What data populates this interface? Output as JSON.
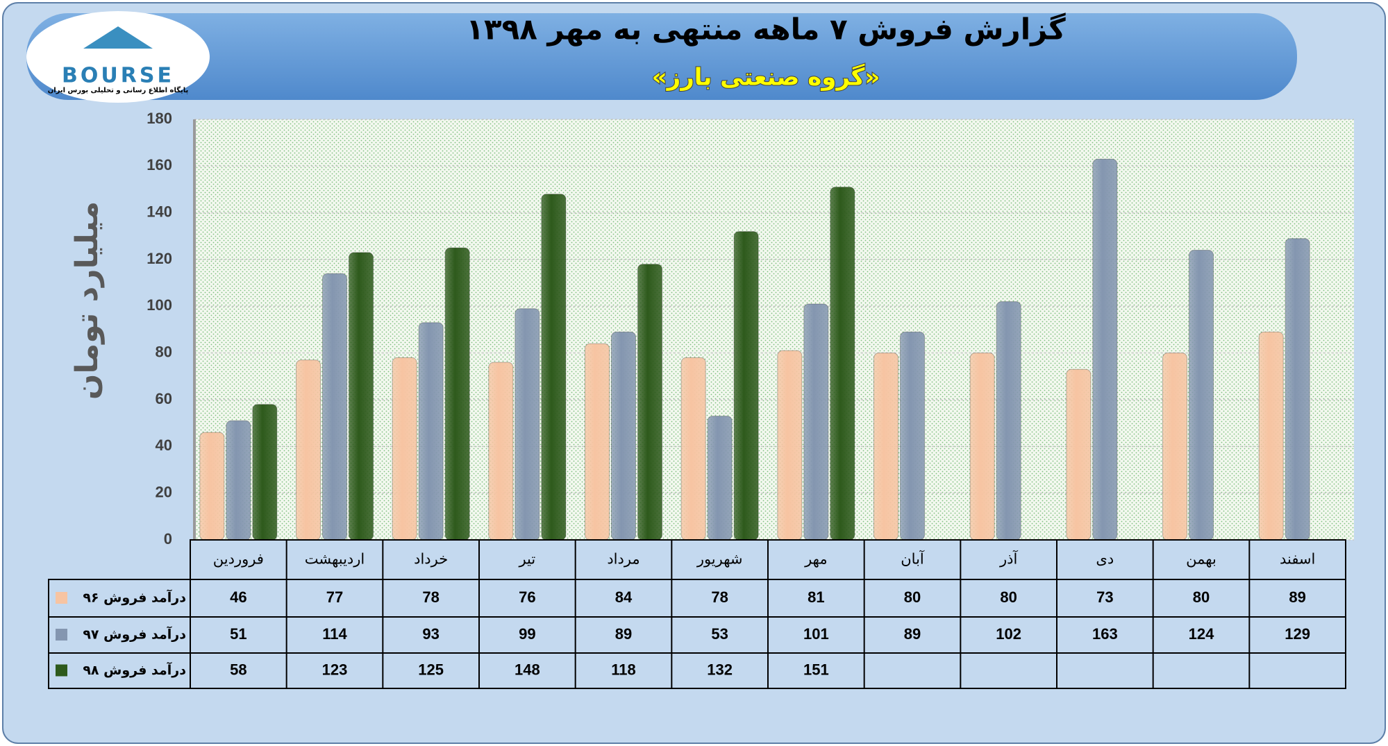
{
  "logo": {
    "text": "BOURSE",
    "tagline": "پایگاه اطلاع رسانی و تحلیلی بورس ایران"
  },
  "chart_data": {
    "type": "bar",
    "title": "گزارش فروش ۷ ماهه منتهی به مهر ۱۳۹۸",
    "subtitle": "«گروه صنعتی بارز»",
    "y_label": "میلیارد تومان",
    "categories": [
      "فروردین",
      "اردیبهشت",
      "خرداد",
      "تیر",
      "مرداد",
      "شهریور",
      "مهر",
      "آبان",
      "آذر",
      "دی",
      "بهمن",
      "اسفند"
    ],
    "series": [
      {
        "name": "درآمد فروش ۹۶",
        "color": "#f7c4a2",
        "values": [
          46,
          77,
          78,
          76,
          84,
          78,
          81,
          80,
          80,
          73,
          80,
          89
        ]
      },
      {
        "name": "درآمد فروش ۹۷",
        "color": "#8496b0",
        "values": [
          51,
          114,
          93,
          99,
          89,
          53,
          101,
          89,
          102,
          163,
          124,
          129
        ]
      },
      {
        "name": "درآمد فروش ۹۸",
        "color": "#2e5a1c",
        "values": [
          58,
          123,
          125,
          148,
          118,
          132,
          151,
          null,
          null,
          null,
          null,
          null
        ]
      }
    ],
    "ylim": [
      0,
      180
    ],
    "yticks": [
      0,
      20,
      40,
      60,
      80,
      100,
      120,
      140,
      160,
      180
    ],
    "grid": true
  }
}
